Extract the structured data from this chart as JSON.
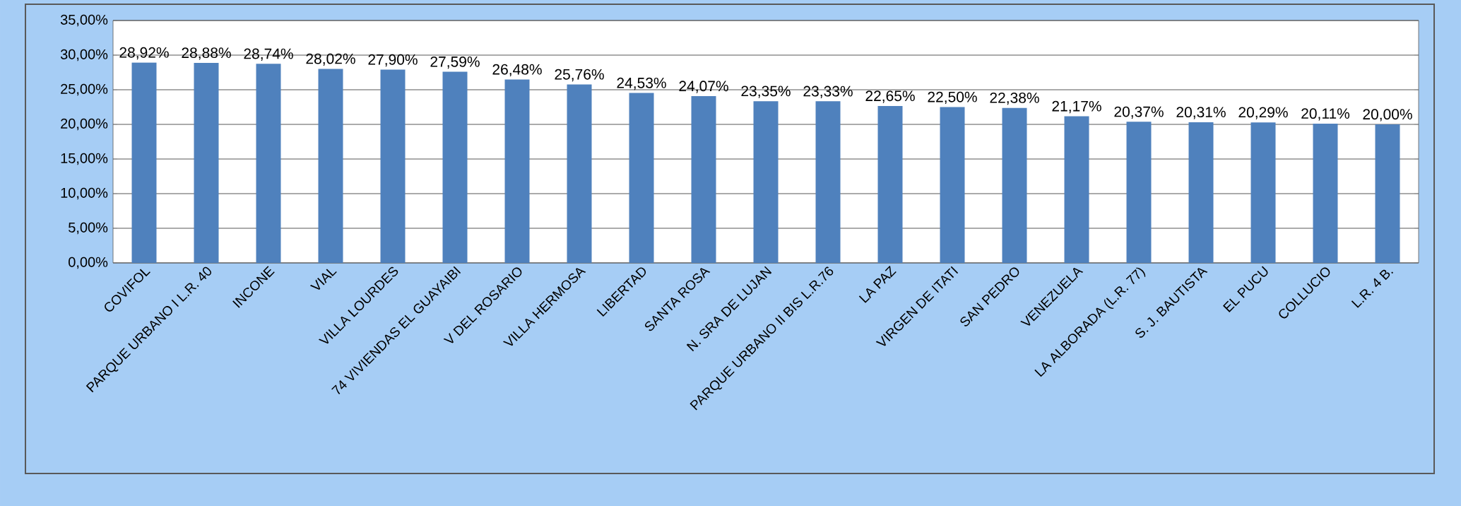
{
  "chart_data": {
    "type": "bar",
    "categories": [
      "COVIFOL",
      "PARQUE URBANO I L.R. 40",
      "INCONE",
      "VIAL",
      "VILLA LOURDES",
      "74 VIVIENDAS EL GUAYAIBI",
      "V DEL ROSARIO",
      "VILLA HERMOSA",
      "LIBERTAD",
      "SANTA ROSA",
      "N. SRA DE LUJAN",
      "PARQUE URBANO II BIS L.R.76",
      "LA PAZ",
      "VIRGEN DE ITATI",
      "SAN PEDRO",
      "VENEZUELA",
      "LA ALBORADA (L.R. 77)",
      "S. J. BAUTISTA",
      "EL PUCU",
      "COLLUCIO",
      "L.R. 4 B."
    ],
    "values": [
      28.92,
      28.88,
      28.74,
      28.02,
      27.9,
      27.59,
      26.48,
      25.76,
      24.53,
      24.07,
      23.35,
      23.33,
      22.65,
      22.5,
      22.38,
      21.17,
      20.37,
      20.31,
      20.29,
      20.11,
      20.0
    ],
    "value_labels": [
      "28,92%",
      "28,88%",
      "28,74%",
      "28,02%",
      "27,90%",
      "27,59%",
      "26,48%",
      "25,76%",
      "24,53%",
      "24,07%",
      "23,35%",
      "23,33%",
      "22,65%",
      "22,50%",
      "22,38%",
      "21,17%",
      "20,37%",
      "20,31%",
      "20,29%",
      "20,11%",
      "20,00%"
    ],
    "color": "#4f81bd",
    "ylim": [
      0,
      35
    ],
    "yticks": [
      {
        "value": 0,
        "label": "0,00%"
      },
      {
        "value": 5,
        "label": "5,00%"
      },
      {
        "value": 10,
        "label": "10,00%"
      },
      {
        "value": 15,
        "label": "15,00%"
      },
      {
        "value": 20,
        "label": "20,00%"
      },
      {
        "value": 25,
        "label": "25,00%"
      },
      {
        "value": 30,
        "label": "30,00%"
      },
      {
        "value": 35,
        "label": "35,00%"
      }
    ],
    "grid": "y"
  }
}
